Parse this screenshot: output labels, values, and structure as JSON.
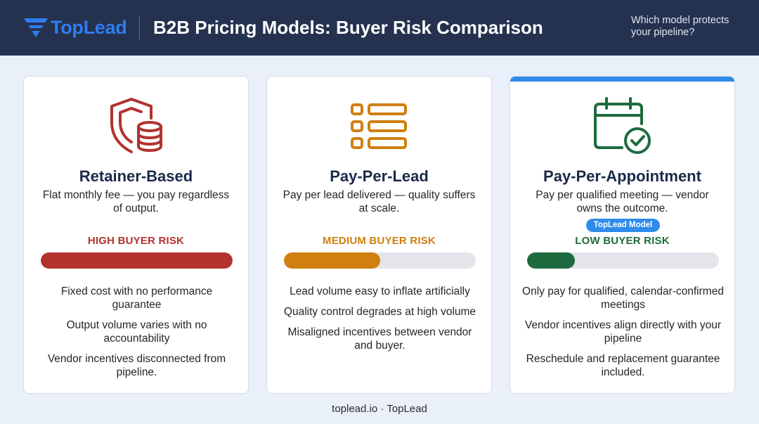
{
  "header": {
    "logo_text": "TopLead",
    "title": "B2B Pricing Models: Buyer Risk Comparison",
    "tagline": "Which model protects your pipeline?"
  },
  "cards": [
    {
      "icon": "shield-coins-icon",
      "title": "Retainer-Based",
      "description": "Flat monthly fee — you pay regardless of output.",
      "risk_label": "HIGH BUYER RISK",
      "risk_level": 1.0,
      "color": "#b2322e",
      "points": [
        "Fixed cost with no performance guarantee",
        "Output volume varies with no accountability",
        "Vendor incentives disconnected from pipeline."
      ]
    },
    {
      "icon": "list-icon",
      "title": "Pay-Per-Lead",
      "description": "Pay per lead delivered — quality suffers at scale.",
      "risk_label": "MEDIUM BUYER RISK",
      "risk_level": 0.5,
      "color": "#d07f10",
      "points": [
        "Lead volume easy to inflate artificially",
        "Quality control degrades at high volume",
        "Misaligned incentives between vendor and buyer."
      ]
    },
    {
      "icon": "calendar-check-icon",
      "title": "Pay-Per-Appointment",
      "description": "Pay per qualified meeting — vendor owns the outcome.",
      "badge": "TopLead Model",
      "risk_label": "LOW BUYER RISK",
      "risk_level": 0.25,
      "color": "#1e6b3f",
      "accent": "#2f8bea",
      "points": [
        "Only pay for qualified, calendar-confirmed meetings",
        "Vendor incentives align directly with your pipeline",
        "Reschedule and replacement guarantee included."
      ]
    }
  ],
  "footer": {
    "text": "toplead.io · TopLead"
  }
}
